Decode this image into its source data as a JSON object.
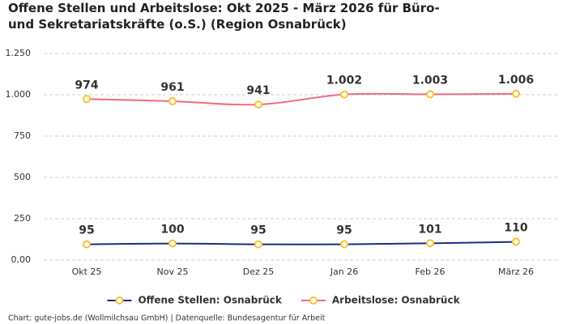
{
  "chart_data": {
    "type": "line",
    "title": "Offene Stellen und Arbeitslose: Okt 2025 - März 2026 für Büro- und Sekretariatskräfte (o.S.) (Region Osnabrück)",
    "categories": [
      "Okt 25",
      "Nov 25",
      "Dez 25",
      "Jan 26",
      "Feb 26",
      "März 26"
    ],
    "series": [
      {
        "name": "Offene Stellen: Osnabrück",
        "color": "#1f2a86",
        "values": [
          95,
          100,
          95,
          95,
          101,
          110
        ]
      },
      {
        "name": "Arbeitslose: Osnabrück",
        "color": "#f2697f",
        "values": [
          974,
          961,
          941,
          1002,
          1003,
          1006
        ],
        "value_labels": [
          "974",
          "961",
          "941",
          "1.002",
          "1.003",
          "1.006"
        ]
      }
    ],
    "marker_color": "#f4c430",
    "ylim": [
      0,
      1250
    ],
    "yticks": [
      {
        "value": 0,
        "label": "0,00"
      },
      250,
      500,
      750,
      {
        "value": 1000,
        "label": "1.000"
      },
      {
        "value": 1250,
        "label": "1.250"
      }
    ],
    "grid": true,
    "legend": "bottom",
    "source": "Chart: gute-jobs.de (Wollmilchsau GmbH) | Datenquelle: Bundesagentur für Arbeit"
  }
}
